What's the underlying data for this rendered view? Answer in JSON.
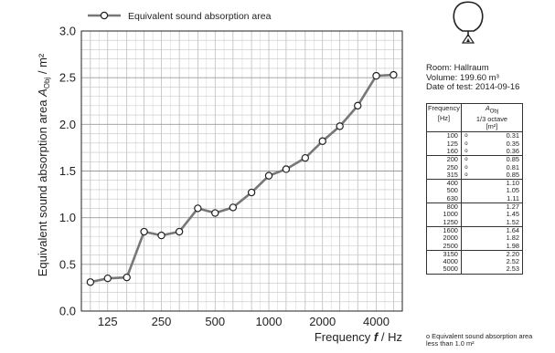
{
  "chart_data": {
    "type": "line",
    "legend": {
      "label": "Equivalent sound absorption area",
      "placement": "top"
    },
    "xlabel_name": "Frequency",
    "xlabel_symbol": "f",
    "xlabel_unit": "/ Hz",
    "ylabel_name": "Equivalent sound absorption area",
    "ylabel_symbol": "A",
    "ylabel_subscript": "Obj",
    "ylabel_unit": "/ m²",
    "x_scale": "log",
    "xlim": [
      89,
      5600
    ],
    "ylim": [
      0.0,
      3.0
    ],
    "y_ticks": [
      "0.0",
      "0.5",
      "1.0",
      "1.5",
      "2.0",
      "2.5",
      "3.0"
    ],
    "x_ticks": [
      "125",
      "250",
      "500",
      "1000",
      "2000",
      "4000"
    ],
    "x_tick_values": [
      125,
      250,
      500,
      1000,
      2000,
      4000
    ],
    "grid": true,
    "series": [
      {
        "name": "Equivalent sound absorption area",
        "x": [
          100,
          125,
          160,
          200,
          250,
          315,
          400,
          500,
          630,
          800,
          1000,
          1250,
          1600,
          2000,
          2500,
          3150,
          4000,
          5000
        ],
        "y": [
          0.31,
          0.35,
          0.36,
          0.85,
          0.81,
          0.85,
          1.1,
          1.05,
          1.11,
          1.27,
          1.45,
          1.52,
          1.64,
          1.82,
          1.98,
          2.2,
          2.52,
          2.53
        ],
        "color": "#777777"
      }
    ]
  },
  "info": {
    "room": "Room: Hallraum",
    "volume": "Volume: 199.60 m³",
    "date": "Date of test: 2014-09-16"
  },
  "table": {
    "col1_header_line1": "Frequency",
    "col1_header_line2": "[Hz]",
    "col2_header_symbol": "A",
    "col2_header_subscript": "Obj",
    "col2_header_line2": "1/3 octave",
    "col2_header_line3": "[m²]",
    "marker": "o",
    "rows": [
      {
        "f": "100",
        "v": "0.31",
        "m": true
      },
      {
        "f": "125",
        "v": "0.35",
        "m": true
      },
      {
        "f": "160",
        "v": "0.36",
        "m": true
      },
      {
        "f": "200",
        "v": "0.85",
        "m": true
      },
      {
        "f": "250",
        "v": "0.81",
        "m": true
      },
      {
        "f": "315",
        "v": "0.85",
        "m": true
      },
      {
        "f": "400",
        "v": "1.10",
        "m": false
      },
      {
        "f": "500",
        "v": "1.05",
        "m": false
      },
      {
        "f": "630",
        "v": "1.11",
        "m": false
      },
      {
        "f": "800",
        "v": "1.27",
        "m": false
      },
      {
        "f": "1000",
        "v": "1.45",
        "m": false
      },
      {
        "f": "1250",
        "v": "1.52",
        "m": false
      },
      {
        "f": "1600",
        "v": "1.64",
        "m": false
      },
      {
        "f": "2000",
        "v": "1.82",
        "m": false
      },
      {
        "f": "2500",
        "v": "1.98",
        "m": false
      },
      {
        "f": "3150",
        "v": "2.20",
        "m": false
      },
      {
        "f": "4000",
        "v": "2.52",
        "m": false
      },
      {
        "f": "5000",
        "v": "2.53",
        "m": false
      }
    ]
  },
  "footnote": "o Equivalent sound absorption area less than 1.0 m²",
  "icon": "microphone-balloon-icon"
}
